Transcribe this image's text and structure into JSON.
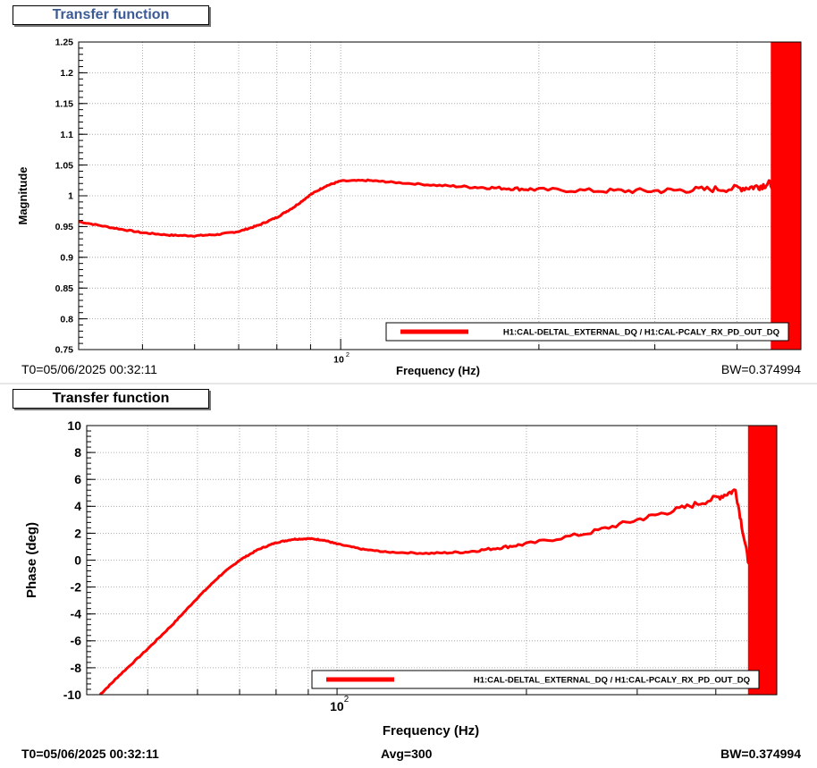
{
  "colors": {
    "series": "#ff0000",
    "title_top": "#3c5a96",
    "grid": "#999999"
  },
  "top_panel": {
    "title": "Transfer function",
    "legend": "H1:CAL-DELTAL_EXTERNAL_DQ / H1:CAL-PCALY_RX_PD_OUT_DQ",
    "t0": "T0=05/06/2025 00:32:11",
    "bw": "BW=0.374994",
    "xlabel": "Frequency (Hz)",
    "ylabel": "Magnitude",
    "x_tick_label": "10",
    "x_tick_exp": "2"
  },
  "bottom_panel": {
    "title": "Transfer function",
    "legend": "H1:CAL-DELTAL_EXTERNAL_DQ / H1:CAL-PCALY_RX_PD_OUT_DQ",
    "t0": "T0=05/06/2025 00:32:11",
    "avg": "Avg=300",
    "bw": "BW=0.374994",
    "xlabel": "Frequency (Hz)",
    "ylabel": "Phase (deg)",
    "x_tick_label": "10",
    "x_tick_exp": "2"
  },
  "chart_data": [
    {
      "type": "line",
      "title": "Transfer function",
      "xlabel": "Frequency (Hz)",
      "ylabel": "Magnitude",
      "x_scale": "log",
      "xlim": [
        40,
        500
      ],
      "ylim": [
        0.75,
        1.25
      ],
      "y_ticks": [
        "0.75",
        "0.8",
        "0.85",
        "0.9",
        "0.95",
        "1",
        "1.05",
        "1.1",
        "1.15",
        "1.2",
        "1.25"
      ],
      "grid": true,
      "legend_position": "bottom-right",
      "series": [
        {
          "name": "H1:CAL-DELTAL_EXTERNAL_DQ / H1:CAL-PCALY_RX_PD_OUT_DQ",
          "color": "#ff0000",
          "x": [
            40,
            45,
            50,
            55,
            60,
            65,
            70,
            75,
            80,
            85,
            90,
            95,
            100,
            110,
            120,
            140,
            160,
            180,
            200,
            250,
            300,
            350,
            400,
            430,
            450,
            470,
            490,
            500
          ],
          "y": [
            0.958,
            0.948,
            0.94,
            0.936,
            0.935,
            0.937,
            0.942,
            0.952,
            0.965,
            0.982,
            1.002,
            1.016,
            1.024,
            1.025,
            1.022,
            1.017,
            1.014,
            1.012,
            1.01,
            1.008,
            1.008,
            1.01,
            1.012,
            1.015,
            1.02,
            1.0,
            1.0,
            1.0
          ]
        }
      ]
    },
    {
      "type": "line",
      "title": "Transfer function",
      "xlabel": "Frequency (Hz)",
      "ylabel": "Phase (deg)",
      "x_scale": "log",
      "xlim": [
        40,
        500
      ],
      "ylim": [
        -10,
        10
      ],
      "y_ticks": [
        "-10",
        "-8",
        "-6",
        "-4",
        "-2",
        "0",
        "2",
        "4",
        "6",
        "8",
        "10"
      ],
      "grid": true,
      "legend_position": "bottom-right",
      "series": [
        {
          "name": "H1:CAL-DELTAL_EXTERNAL_DQ / H1:CAL-PCALY_RX_PD_OUT_DQ",
          "color": "#ff0000",
          "x": [
            42,
            45,
            50,
            55,
            60,
            65,
            70,
            75,
            80,
            85,
            90,
            95,
            100,
            110,
            120,
            140,
            160,
            180,
            200,
            250,
            300,
            350,
            400,
            430,
            450,
            470,
            500
          ],
          "y": [
            -10,
            -8.6,
            -6.6,
            -4.7,
            -2.8,
            -1.2,
            0,
            0.8,
            1.3,
            1.55,
            1.6,
            1.5,
            1.2,
            0.8,
            0.6,
            0.5,
            0.6,
            0.9,
            1.2,
            2.0,
            3.0,
            3.8,
            4.6,
            5.2,
            0,
            0,
            0
          ]
        }
      ]
    }
  ]
}
